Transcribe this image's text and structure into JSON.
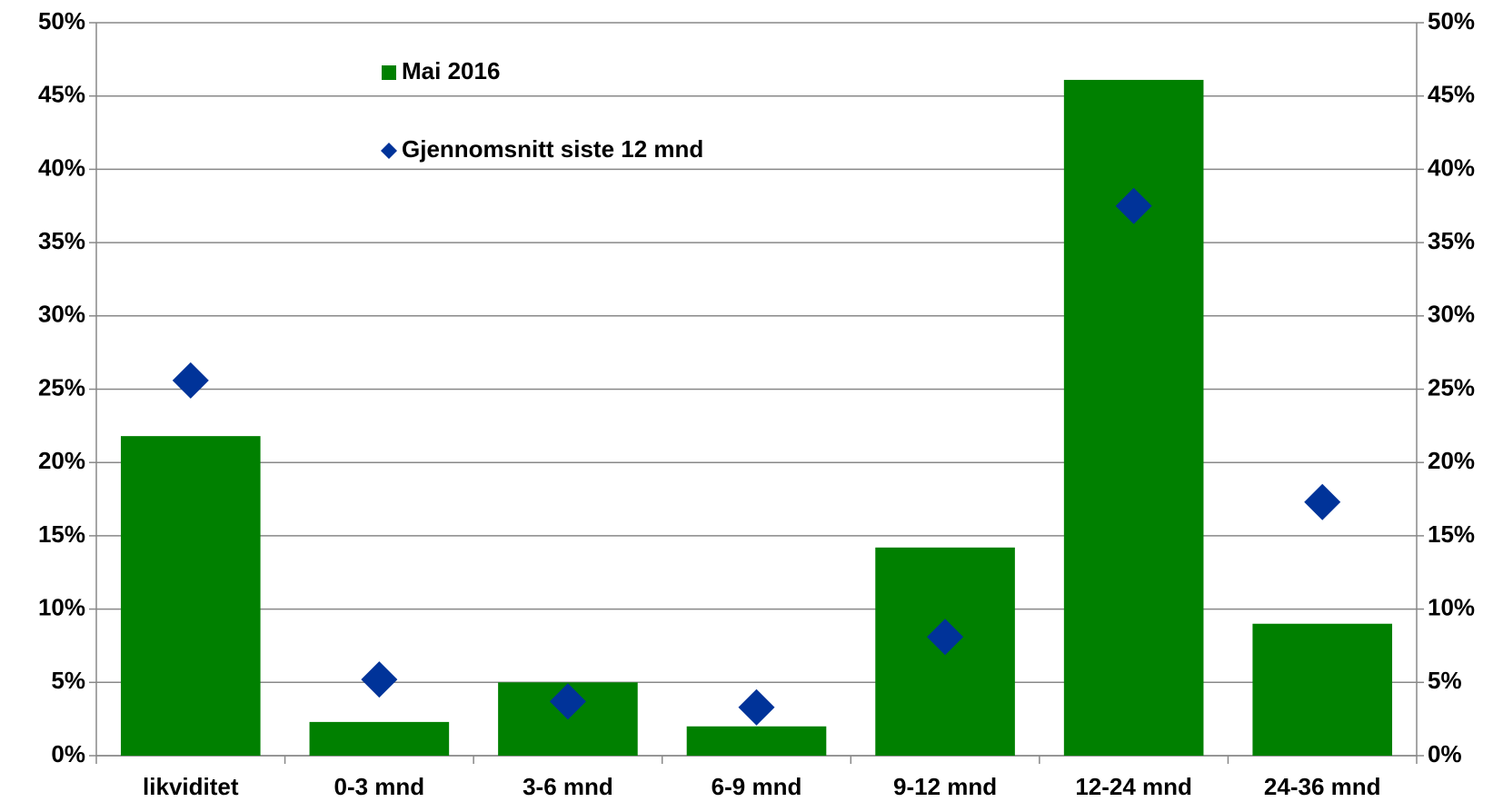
{
  "chart_data": {
    "type": "bar",
    "categories": [
      "likviditet",
      "0-3 mnd",
      "3-6 mnd",
      "6-9 mnd",
      "9-12 mnd",
      "12-24 mnd",
      "24-36 mnd"
    ],
    "series": [
      {
        "name": "Mai 2016",
        "type": "bar",
        "color": "#008000",
        "values": [
          21.8,
          2.3,
          5.0,
          2.0,
          14.2,
          46.1,
          9.0
        ]
      },
      {
        "name": "Gjennomsnitt siste 12 mnd",
        "type": "scatter",
        "color": "#003399",
        "values": [
          25.6,
          5.2,
          3.7,
          3.3,
          8.1,
          37.5,
          17.3
        ]
      }
    ],
    "ylim": [
      0,
      50
    ],
    "yticks": [
      {
        "value": 0,
        "label": "0%"
      },
      {
        "value": 5,
        "label": "5%"
      },
      {
        "value": 10,
        "label": "10%"
      },
      {
        "value": 15,
        "label": "15%"
      },
      {
        "value": 20,
        "label": "20%"
      },
      {
        "value": 25,
        "label": "25%"
      },
      {
        "value": 30,
        "label": "30%"
      },
      {
        "value": 35,
        "label": "35%"
      },
      {
        "value": 40,
        "label": "40%"
      },
      {
        "value": 45,
        "label": "45%"
      },
      {
        "value": 50,
        "label": "50%"
      }
    ],
    "y2lim": [
      0,
      50
    ],
    "y2ticks": [
      {
        "value": 0,
        "label": "0%"
      },
      {
        "value": 5,
        "label": "5%"
      },
      {
        "value": 10,
        "label": "10%"
      },
      {
        "value": 15,
        "label": "15%"
      },
      {
        "value": 20,
        "label": "20%"
      },
      {
        "value": 25,
        "label": "25%"
      },
      {
        "value": 30,
        "label": "30%"
      },
      {
        "value": 35,
        "label": "35%"
      },
      {
        "value": 40,
        "label": "40%"
      },
      {
        "value": 45,
        "label": "45%"
      },
      {
        "value": 50,
        "label": "50%"
      }
    ],
    "grid": true
  }
}
